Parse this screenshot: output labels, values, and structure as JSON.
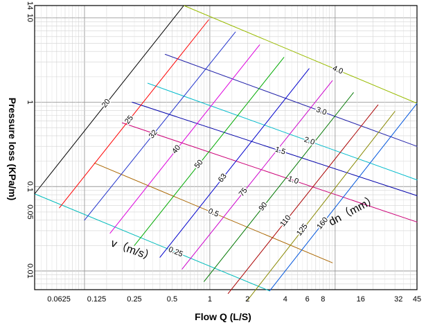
{
  "chart_data": {
    "type": "line",
    "title": "",
    "xlabel": "Flow Q (L/S)",
    "ylabel": "Pressure loss (KPa/m)",
    "x_scale": "log",
    "y_scale": "log",
    "xlim": [
      0.04,
      45
    ],
    "ylim": [
      0.006,
      14
    ],
    "grid": true,
    "x_ticks": [
      "0.0625",
      "0.125",
      "0.25",
      "0.5",
      "1",
      "2",
      "4",
      "6",
      "8",
      "16",
      "32",
      "45"
    ],
    "y_ticks": [
      "0.01",
      "0.05",
      "0.1",
      "1",
      "10",
      "14"
    ],
    "diameter_group_label": "dn（mm）",
    "velocity_group_label": "v（m/s）",
    "pipe_diameters": [
      {
        "name": "20",
        "color": "#000000",
        "points": [
          [
            0.04,
            0.082
          ],
          [
            0.62,
            14
          ]
        ]
      },
      {
        "name": "25",
        "color": "#ff0000",
        "points": [
          [
            0.063,
            0.056
          ],
          [
            0.98,
            9.5
          ]
        ]
      },
      {
        "name": "32",
        "color": "#2233cc",
        "points": [
          [
            0.1,
            0.04
          ],
          [
            1.6,
            6.8
          ]
        ]
      },
      {
        "name": "40",
        "color": "#dd00dd",
        "points": [
          [
            0.16,
            0.028
          ],
          [
            2.5,
            4.8
          ]
        ]
      },
      {
        "name": "50",
        "color": "#00aa00",
        "points": [
          [
            0.25,
            0.02
          ],
          [
            3.9,
            3.4
          ]
        ]
      },
      {
        "name": "63",
        "color": "#0000cc",
        "points": [
          [
            0.4,
            0.0145
          ],
          [
            6.2,
            2.5
          ]
        ]
      },
      {
        "name": "75",
        "color": "#cc00cc",
        "points": [
          [
            0.6,
            0.0105
          ],
          [
            9.5,
            1.8
          ]
        ]
      },
      {
        "name": "90",
        "color": "#007700",
        "points": [
          [
            0.9,
            0.0075
          ],
          [
            14,
            1.3
          ]
        ]
      },
      {
        "name": "110",
        "color": "#aa0000",
        "points": [
          [
            1.4,
            0.0054
          ],
          [
            22,
            0.93
          ]
        ]
      },
      {
        "name": "125",
        "color": "#888800",
        "points": [
          [
            2.0,
            0.0045
          ],
          [
            30,
            0.78
          ]
        ]
      },
      {
        "name": "160",
        "color": "#0055dd",
        "points": [
          [
            3.0,
            0.0058
          ],
          [
            45,
            0.97
          ]
        ]
      }
    ],
    "velocities": [
      {
        "name": "0.25",
        "color": "#00bbbb",
        "points": [
          [
            0.04,
            0.082
          ],
          [
            3.0,
            0.0058
          ]
        ]
      },
      {
        "name": "0.5",
        "color": "#aa6600",
        "points": [
          [
            0.12,
            0.19
          ],
          [
            9.5,
            0.0125
          ]
        ]
      },
      {
        "name": "1.0",
        "color": "#cc0077",
        "points": [
          [
            0.2,
            0.57
          ],
          [
            45,
            0.038
          ]
        ]
      },
      {
        "name": "1.5",
        "color": "#0000aa",
        "points": [
          [
            0.24,
            1.0
          ],
          [
            45,
            0.078
          ]
        ]
      },
      {
        "name": "2.0",
        "color": "#00bbcc",
        "points": [
          [
            0.32,
            1.68
          ],
          [
            45,
            0.12
          ]
        ]
      },
      {
        "name": "3.0",
        "color": "#2222aa",
        "points": [
          [
            0.44,
            3.7
          ],
          [
            45,
            0.3
          ]
        ]
      },
      {
        "name": "4.0",
        "color": "#99bb00",
        "points": [
          [
            0.62,
            14
          ],
          [
            45,
            0.97
          ]
        ]
      }
    ]
  }
}
